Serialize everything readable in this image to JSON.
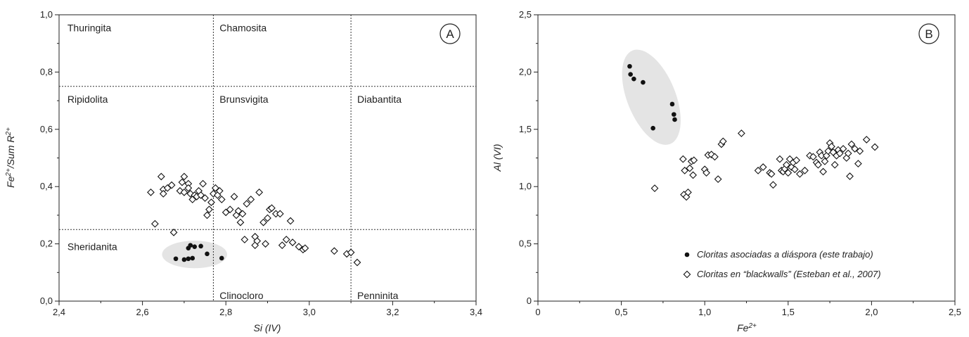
{
  "chart_data": [
    {
      "type": "scatter",
      "panel_label": "A",
      "xlabel": "Si (IV)",
      "ylabel": "Fe2+/Sum R2+",
      "xlim": [
        2.4,
        3.4
      ],
      "ylim": [
        0.0,
        1.0
      ],
      "x_ticks": [
        2.4,
        2.6,
        2.8,
        3.0,
        3.2,
        3.4
      ],
      "x_tick_labels": [
        "2,4",
        "2,6",
        "2,8",
        "3,0",
        "3,2",
        "3,4"
      ],
      "y_ticks": [
        0.0,
        0.2,
        0.4,
        0.6,
        0.8,
        1.0
      ],
      "y_tick_labels": [
        "0,0",
        "0,2",
        "0,4",
        "0,6",
        "0,8",
        "1,0"
      ],
      "field_boundaries": {
        "horizontal": [
          0.75,
          0.25
        ],
        "vertical_top": [
          2.77,
          3.1
        ],
        "vertical_bottom": [
          2.77,
          3.1
        ]
      },
      "field_labels": [
        {
          "text": "Thuringita",
          "x": 2.42,
          "y": 0.955
        },
        {
          "text": "Chamosita",
          "x": 2.785,
          "y": 0.955
        },
        {
          "text": "Ripidolita",
          "x": 2.42,
          "y": 0.705
        },
        {
          "text": "Brunsvigita",
          "x": 2.785,
          "y": 0.705
        },
        {
          "text": "Diabantita",
          "x": 3.115,
          "y": 0.705
        },
        {
          "text": "Sheridanita",
          "x": 2.42,
          "y": 0.19
        },
        {
          "text": "Clinocloro",
          "x": 2.785,
          "y": 0.02
        },
        {
          "text": "Penninita",
          "x": 3.115,
          "y": 0.02
        }
      ],
      "highlight_ellipse": {
        "cx": 2.725,
        "cy": 0.163,
        "rx": 0.078,
        "ry": 0.048
      },
      "series": [
        {
          "name": "Cloritas asociadas a diáspora (este trabajo)",
          "marker": "filled-circle",
          "points": [
            [
              2.68,
              0.148
            ],
            [
              2.7,
              0.145
            ],
            [
              2.71,
              0.185
            ],
            [
              2.715,
              0.195
            ],
            [
              2.72,
              0.15
            ],
            [
              2.71,
              0.148
            ],
            [
              2.725,
              0.19
            ],
            [
              2.74,
              0.192
            ],
            [
              2.755,
              0.165
            ],
            [
              2.79,
              0.15
            ]
          ]
        },
        {
          "name": "Cloritas en “blackwalls” (Esteban et al., 2007)",
          "marker": "open-diamond",
          "points": [
            [
              2.62,
              0.38
            ],
            [
              2.63,
              0.27
            ],
            [
              2.645,
              0.435
            ],
            [
              2.65,
              0.39
            ],
            [
              2.65,
              0.375
            ],
            [
              2.66,
              0.395
            ],
            [
              2.67,
              0.405
            ],
            [
              2.675,
              0.24
            ],
            [
              2.69,
              0.385
            ],
            [
              2.695,
              0.415
            ],
            [
              2.7,
              0.435
            ],
            [
              2.7,
              0.38
            ],
            [
              2.71,
              0.41
            ],
            [
              2.71,
              0.395
            ],
            [
              2.715,
              0.375
            ],
            [
              2.72,
              0.355
            ],
            [
              2.725,
              0.37
            ],
            [
              2.73,
              0.365
            ],
            [
              2.735,
              0.385
            ],
            [
              2.74,
              0.37
            ],
            [
              2.745,
              0.41
            ],
            [
              2.75,
              0.36
            ],
            [
              2.755,
              0.3
            ],
            [
              2.76,
              0.32
            ],
            [
              2.765,
              0.345
            ],
            [
              2.77,
              0.375
            ],
            [
              2.775,
              0.395
            ],
            [
              2.78,
              0.37
            ],
            [
              2.785,
              0.385
            ],
            [
              2.79,
              0.355
            ],
            [
              2.8,
              0.31
            ],
            [
              2.81,
              0.32
            ],
            [
              2.82,
              0.365
            ],
            [
              2.825,
              0.3
            ],
            [
              2.83,
              0.315
            ],
            [
              2.835,
              0.275
            ],
            [
              2.84,
              0.305
            ],
            [
              2.845,
              0.215
            ],
            [
              2.85,
              0.34
            ],
            [
              2.86,
              0.355
            ],
            [
              2.87,
              0.195
            ],
            [
              2.87,
              0.225
            ],
            [
              2.875,
              0.21
            ],
            [
              2.88,
              0.38
            ],
            [
              2.89,
              0.275
            ],
            [
              2.895,
              0.2
            ],
            [
              2.9,
              0.29
            ],
            [
              2.905,
              0.32
            ],
            [
              2.91,
              0.325
            ],
            [
              2.92,
              0.305
            ],
            [
              2.93,
              0.305
            ],
            [
              2.935,
              0.195
            ],
            [
              2.945,
              0.215
            ],
            [
              2.955,
              0.28
            ],
            [
              2.96,
              0.205
            ],
            [
              2.975,
              0.19
            ],
            [
              2.985,
              0.18
            ],
            [
              2.99,
              0.185
            ],
            [
              3.06,
              0.175
            ],
            [
              3.09,
              0.165
            ],
            [
              3.1,
              0.17
            ],
            [
              3.115,
              0.135
            ]
          ]
        }
      ]
    },
    {
      "type": "scatter",
      "panel_label": "B",
      "xlabel": "Fe2+",
      "ylabel": "Al (VI)",
      "xlim": [
        0,
        2.5
      ],
      "ylim": [
        0,
        2.5
      ],
      "x_ticks": [
        0,
        0.5,
        1.0,
        1.5,
        2.0,
        2.5
      ],
      "x_tick_labels": [
        "0",
        "0,5",
        "1,0",
        "1,5",
        "2,0",
        "2,5"
      ],
      "y_ticks": [
        0,
        0.5,
        1.0,
        1.5,
        2.0,
        2.5
      ],
      "y_tick_labels": [
        "0",
        "0,5",
        "1,0",
        "1,5",
        "2,0",
        "2,5"
      ],
      "highlight_ellipse": {
        "cx": 0.68,
        "cy": 1.78,
        "rx": 0.145,
        "ry": 0.44,
        "rotate": -22
      },
      "series": [
        {
          "name": "Cloritas asociadas a diáspora (este trabajo)",
          "marker": "filled-circle",
          "points": [
            [
              0.55,
              2.05
            ],
            [
              0.555,
              1.98
            ],
            [
              0.575,
              1.94
            ],
            [
              0.63,
              1.91
            ],
            [
              0.69,
              1.51
            ],
            [
              0.805,
              1.72
            ],
            [
              0.815,
              1.63
            ],
            [
              0.82,
              1.585
            ]
          ]
        },
        {
          "name": "Cloritas en “blackwalls” (Esteban et al., 2007)",
          "marker": "open-diamond",
          "points": [
            [
              0.7,
              0.985
            ],
            [
              0.87,
              1.24
            ],
            [
              0.875,
              0.93
            ],
            [
              0.88,
              1.14
            ],
            [
              0.89,
              0.91
            ],
            [
              0.9,
              0.95
            ],
            [
              0.91,
              1.16
            ],
            [
              0.92,
              1.22
            ],
            [
              0.93,
              1.1
            ],
            [
              0.935,
              1.23
            ],
            [
              1.0,
              1.15
            ],
            [
              1.01,
              1.12
            ],
            [
              1.02,
              1.275
            ],
            [
              1.04,
              1.28
            ],
            [
              1.06,
              1.26
            ],
            [
              1.08,
              1.065
            ],
            [
              1.1,
              1.37
            ],
            [
              1.11,
              1.395
            ],
            [
              1.22,
              1.465
            ],
            [
              1.32,
              1.14
            ],
            [
              1.35,
              1.17
            ],
            [
              1.39,
              1.12
            ],
            [
              1.4,
              1.11
            ],
            [
              1.41,
              1.015
            ],
            [
              1.45,
              1.24
            ],
            [
              1.46,
              1.14
            ],
            [
              1.47,
              1.13
            ],
            [
              1.48,
              1.155
            ],
            [
              1.49,
              1.19
            ],
            [
              1.5,
              1.12
            ],
            [
              1.51,
              1.24
            ],
            [
              1.52,
              1.17
            ],
            [
              1.53,
              1.21
            ],
            [
              1.54,
              1.15
            ],
            [
              1.55,
              1.23
            ],
            [
              1.57,
              1.11
            ],
            [
              1.6,
              1.14
            ],
            [
              1.63,
              1.27
            ],
            [
              1.65,
              1.26
            ],
            [
              1.67,
              1.21
            ],
            [
              1.68,
              1.19
            ],
            [
              1.69,
              1.3
            ],
            [
              1.7,
              1.27
            ],
            [
              1.71,
              1.13
            ],
            [
              1.72,
              1.22
            ],
            [
              1.73,
              1.27
            ],
            [
              1.74,
              1.31
            ],
            [
              1.75,
              1.38
            ],
            [
              1.76,
              1.35
            ],
            [
              1.77,
              1.3
            ],
            [
              1.78,
              1.19
            ],
            [
              1.79,
              1.27
            ],
            [
              1.8,
              1.32
            ],
            [
              1.81,
              1.29
            ],
            [
              1.83,
              1.33
            ],
            [
              1.85,
              1.25
            ],
            [
              1.86,
              1.29
            ],
            [
              1.87,
              1.09
            ],
            [
              1.88,
              1.37
            ],
            [
              1.9,
              1.33
            ],
            [
              1.92,
              1.2
            ],
            [
              1.93,
              1.31
            ],
            [
              1.97,
              1.41
            ],
            [
              2.02,
              1.345
            ]
          ]
        }
      ],
      "legend": {
        "placement": "bottom-right",
        "entries": [
          {
            "marker": "filled-circle",
            "text": "Cloritas asociadas a diáspora (este trabajo)"
          },
          {
            "marker": "open-diamond",
            "text": "Cloritas en “blackwalls” (Esteban et al., 2007)"
          }
        ]
      }
    }
  ]
}
